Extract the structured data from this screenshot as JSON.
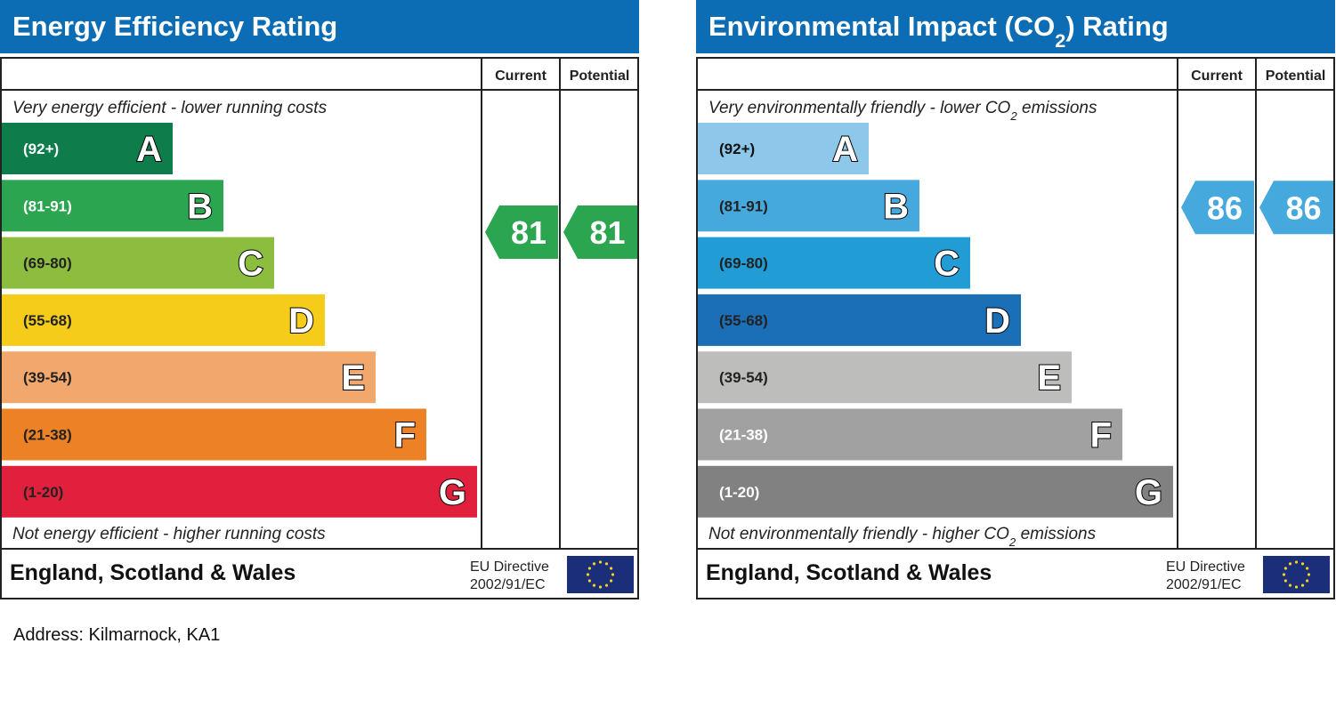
{
  "address": "Address: Kilmarnock, KA1",
  "chart_data": [
    {
      "type": "bar",
      "title": "Energy Efficiency Rating",
      "columns": [
        "Current",
        "Potential"
      ],
      "top_note": "Very energy efficient - lower running costs",
      "bottom_note": "Not energy efficient - higher running costs",
      "footer_region": "England, Scotland & Wales",
      "footer_directive": [
        "EU Directive",
        "2002/91/EC"
      ],
      "bands": [
        {
          "letter": "A",
          "range": "(92+)",
          "color": "#0f7d4b",
          "text_color": "#ffffff"
        },
        {
          "letter": "B",
          "range": "(81-91)",
          "color": "#2ba54f",
          "text_color": "#ffffff"
        },
        {
          "letter": "C",
          "range": "(69-80)",
          "color": "#8cbd3f",
          "text_color": "#222222"
        },
        {
          "letter": "D",
          "range": "(55-68)",
          "color": "#f5cc1a",
          "text_color": "#222222"
        },
        {
          "letter": "E",
          "range": "(39-54)",
          "color": "#f2a86d",
          "text_color": "#222222"
        },
        {
          "letter": "F",
          "range": "(21-38)",
          "color": "#ec8125",
          "text_color": "#222222"
        },
        {
          "letter": "G",
          "range": "(1-20)",
          "color": "#e0203c",
          "text_color": "#222222"
        }
      ],
      "current": {
        "value": 81,
        "band": "B",
        "color": "#2ba54f"
      },
      "potential": {
        "value": 81,
        "band": "B",
        "color": "#2ba54f"
      }
    },
    {
      "type": "bar",
      "title": "Environmental Impact (CO2) Rating",
      "columns": [
        "Current",
        "Potential"
      ],
      "top_note": "Very environmentally friendly - lower CO2 emissions",
      "bottom_note": "Not environmentally friendly - higher CO2 emissions",
      "footer_region": "England, Scotland & Wales",
      "footer_directive": [
        "EU Directive",
        "2002/91/EC"
      ],
      "bands": [
        {
          "letter": "A",
          "range": "(92+)",
          "color": "#8dc8ea",
          "text_color": "#111111"
        },
        {
          "letter": "B",
          "range": "(81-91)",
          "color": "#46a9de",
          "text_color": "#222222"
        },
        {
          "letter": "C",
          "range": "(69-80)",
          "color": "#229cd5",
          "text_color": "#222222"
        },
        {
          "letter": "D",
          "range": "(55-68)",
          "color": "#1b6fb7",
          "text_color": "#222222"
        },
        {
          "letter": "E",
          "range": "(39-54)",
          "color": "#bdbdbc",
          "text_color": "#222222"
        },
        {
          "letter": "F",
          "range": "(21-38)",
          "color": "#a1a1a1",
          "text_color": "#ffffff"
        },
        {
          "letter": "G",
          "range": "(1-20)",
          "color": "#818181",
          "text_color": "#ffffff"
        }
      ],
      "current": {
        "value": 86,
        "band": "B",
        "color": "#46a9de"
      },
      "potential": {
        "value": 86,
        "band": "B",
        "color": "#46a9de"
      }
    }
  ]
}
